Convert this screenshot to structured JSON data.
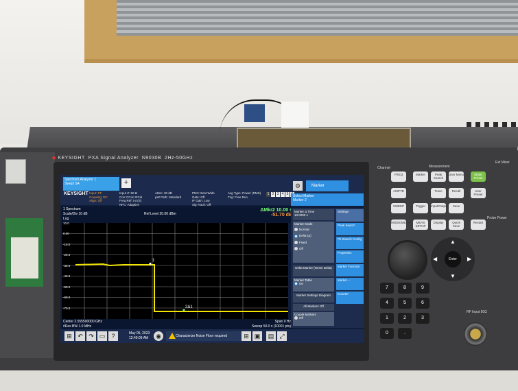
{
  "scene": {
    "background_color": "#e9e8e4",
    "instrument_color": "#3d3d40"
  },
  "instrument": {
    "brand": "KEYSIGHT",
    "model": "PXA Signal Analyzer",
    "model_code": "N9030B",
    "freq_range": "2Hz-50GHz"
  },
  "screen": {
    "tab_title": "Spectrum Analyzer 1",
    "tab_subtitle": "Swept SA",
    "logo": "KEYSIGHT",
    "input": [
      "Input: RF",
      "Coupling: DC",
      "Align: Off"
    ],
    "input2": [
      "Input Z: 50 Ω",
      "Corr CCorr RCal",
      "Freq Ref: Int (S)",
      "NFC: Adaptive"
    ],
    "atten": [
      "Atten: 30 dB",
      "µW Path: Standard"
    ],
    "pno": [
      "PNO: Best Wide",
      "Gate: Off",
      "IF Gain: Low",
      "Sig Track: Off"
    ],
    "avg": [
      "Avg Type: Power (RMS)",
      "Trig: Free Run"
    ],
    "traces": [
      "1",
      "2",
      "3",
      "4",
      "5",
      "6"
    ],
    "marker_button": "Marker",
    "select_marker_label": "Select Marker",
    "select_marker_value": "Marker 2",
    "trace_label": "1 Spectrum",
    "scale": "Scale/Div 10 dB",
    "log": "Log",
    "ref_level": "Ref Level 20.00 dBm",
    "mkr_label": "ΔMkr2",
    "mkr_time": "10.00 s",
    "mkr_value": "-51.70 dB",
    "y_ticks": [
      "10.0",
      "0.00",
      "-10.0",
      "-20.0",
      "-30.0",
      "-40.0",
      "-50.0",
      "-60.0",
      "-70.0"
    ],
    "center": "Center 2.555500000 GHz",
    "res_bw": "#Res BW 1.0 MHz",
    "span": "Span 0 Hz",
    "sweep": "Sweep 50.0 s (10001 pts)",
    "date": "May 05, 2023",
    "time": "12:49:09 AM",
    "alert": "Characterize Noise Floor required",
    "marker1_label": "1",
    "marker2_label": "2Δ1"
  },
  "panel": {
    "delta_time_label": "Marker Δ Time",
    "delta_time_value": "10.0000 s",
    "mode_label": "Marker Mode",
    "modes": [
      "Normal",
      "Delta (Δ)",
      "Fixed",
      "Off"
    ],
    "selected_mode": "Delta (Δ)",
    "delta_marker": "Delta Marker (Reset Delta)",
    "marker_table": "Marker Table",
    "on": "On",
    "off": "Off",
    "marker_settings": "Marker Settings Diagram",
    "all_markers_off": "All Markers Off",
    "couple_markers": "Couple Markers",
    "tabs": [
      "Settings",
      "Peak Search",
      "Pk Search Config",
      "Properties",
      "Marker Function",
      "Marker→",
      "Counter"
    ]
  },
  "keypad": {
    "measurement_label": "Measurement",
    "channel_label": "Channel",
    "keys": [
      "FREQ",
      "Marker",
      "Peak Search",
      "User Menu",
      "Mode Preset",
      "AMPTD",
      "Trace",
      "Recall",
      "User Preset",
      "SWEEP",
      "Trigger",
      "Input/Output",
      "Save",
      "MODE/MEAS",
      "MEAS SETUP",
      "Display",
      "Quick Save",
      "Restart"
    ],
    "numbers": [
      "7",
      "8",
      "9",
      "4",
      "5",
      "6",
      "1",
      "2",
      "3",
      "0",
      "."
    ],
    "enter": "Enter",
    "ext_mixer": "Ext Mixer",
    "probe_power": "Probe Power",
    "rf_input": "RF Input 50Ω"
  }
}
